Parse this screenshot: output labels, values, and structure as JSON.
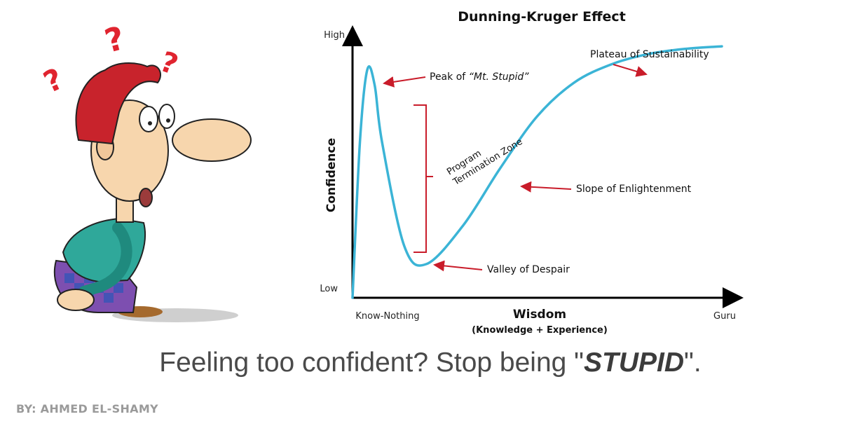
{
  "chart_data": {
    "type": "line",
    "title": "Dunning-Kruger Effect",
    "xlabel": "Wisdom",
    "xlabel_sub": "(Knowledge + Experience)",
    "ylabel": "Confidence",
    "x_tick_labels": {
      "start": "Know-Nothing",
      "end": "Guru"
    },
    "y_tick_labels": {
      "low": "Low",
      "high": "High"
    },
    "grid": false,
    "curve_color": "#3bb4d6",
    "annotation_color": "#c91c2a",
    "series": [
      {
        "x": [
          0,
          2,
          4,
          6,
          8,
          14,
          20,
          30,
          40,
          50,
          60,
          70,
          80,
          90,
          100
        ],
        "y": [
          0,
          60,
          88,
          82,
          60,
          20,
          13,
          28,
          50,
          70,
          83,
          90,
          94,
          96,
          97
        ]
      }
    ],
    "annotations": {
      "peak": {
        "prefix": "Peak of ",
        "emph": "“Mt. Stupid”"
      },
      "plateau": "Plateau of Sustainability",
      "slope": "Slope of Enlightenment",
      "valley": "Valley of Despair",
      "zone": [
        "Program",
        "Termination Zone"
      ]
    }
  },
  "caption": {
    "prefix": "Feeling too confident? Stop being \"",
    "emphasis": "STUPID",
    "suffix": "\"."
  },
  "byline": "BY: AHMED EL-SHAMY",
  "illustration": {
    "subject": "confused-man-cartoon",
    "marks": [
      "?",
      "?",
      "?"
    ],
    "colors": {
      "hair": "#c8232c",
      "skin": "#f7d6ad",
      "shirt": "#2fa89a",
      "pants": "#7d4fb0",
      "question": "#e0242f"
    }
  }
}
